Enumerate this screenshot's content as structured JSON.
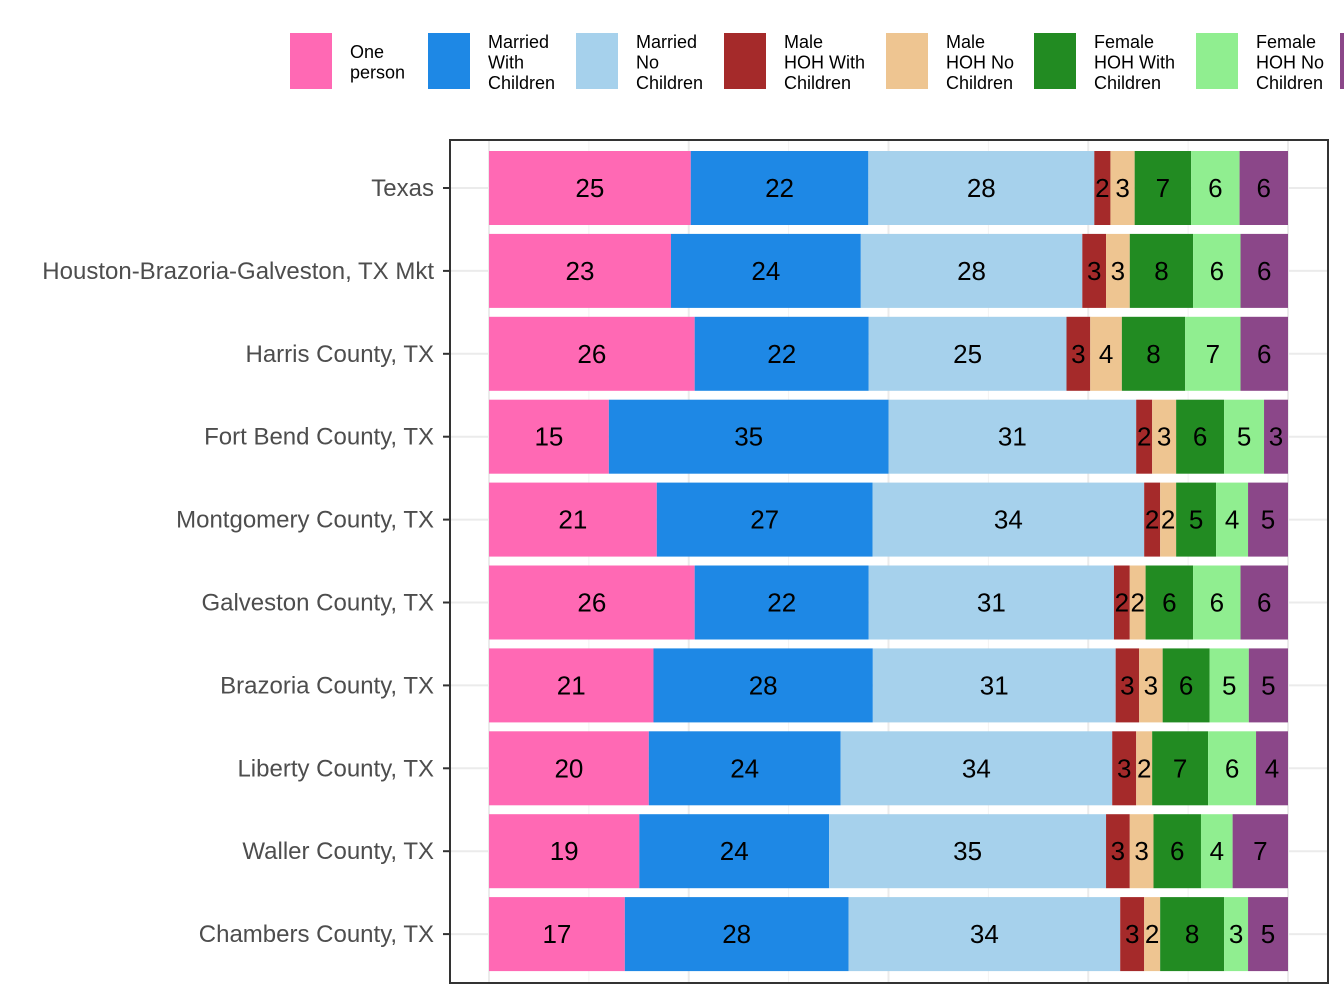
{
  "chart_data": {
    "type": "bar",
    "orientation": "horizontal",
    "stacked": true,
    "normalized": true,
    "categories": [
      "Texas",
      "Houston-Brazoria-Galveston, TX Mkt",
      "Harris County, TX",
      "Fort Bend County, TX",
      "Montgomery County, TX",
      "Galveston County, TX",
      "Brazoria County, TX",
      "Liberty County, TX",
      "Waller County, TX",
      "Chambers County, TX"
    ],
    "series": [
      {
        "name": "One person",
        "legend_lines": [
          "One",
          "person"
        ],
        "color": "#ff69b4",
        "values": [
          25,
          23,
          26,
          15,
          21,
          26,
          21,
          20,
          19,
          17
        ]
      },
      {
        "name": "Married With Children",
        "legend_lines": [
          "Married",
          "With",
          "Children"
        ],
        "color": "#1e88e5",
        "values": [
          22,
          24,
          22,
          35,
          27,
          22,
          28,
          24,
          24,
          28
        ]
      },
      {
        "name": "Married No Children",
        "legend_lines": [
          "Married",
          "No",
          "Children"
        ],
        "color": "#a6d1ec",
        "values": [
          28,
          28,
          25,
          31,
          34,
          31,
          31,
          34,
          35,
          34
        ]
      },
      {
        "name": "Male HOH With Children",
        "legend_lines": [
          "Male",
          "HOH With",
          "Children"
        ],
        "color": "#a52a2a",
        "values": [
          2,
          3,
          3,
          2,
          2,
          2,
          3,
          3,
          3,
          3
        ]
      },
      {
        "name": "Male HOH No Children",
        "legend_lines": [
          "Male",
          "HOH No",
          "Children"
        ],
        "color": "#eec591",
        "values": [
          3,
          3,
          4,
          3,
          2,
          2,
          3,
          2,
          3,
          2
        ]
      },
      {
        "name": "Female HOH With Children",
        "legend_lines": [
          "Female",
          "HOH With",
          "Children"
        ],
        "color": "#228b22",
        "values": [
          7,
          8,
          8,
          6,
          5,
          6,
          6,
          7,
          6,
          8
        ]
      },
      {
        "name": "Female HOH No Children",
        "legend_lines": [
          "Female",
          "HOH No",
          "Children"
        ],
        "color": "#90ee90",
        "values": [
          6,
          6,
          7,
          5,
          4,
          6,
          5,
          6,
          4,
          3
        ]
      },
      {
        "name": "",
        "legend_lines": [],
        "color": "#8b4789",
        "values": [
          6,
          6,
          6,
          3,
          5,
          6,
          5,
          4,
          7,
          5
        ]
      }
    ],
    "title": "",
    "xlabel": "",
    "ylabel": "",
    "grid": true,
    "legend_position": "top"
  }
}
